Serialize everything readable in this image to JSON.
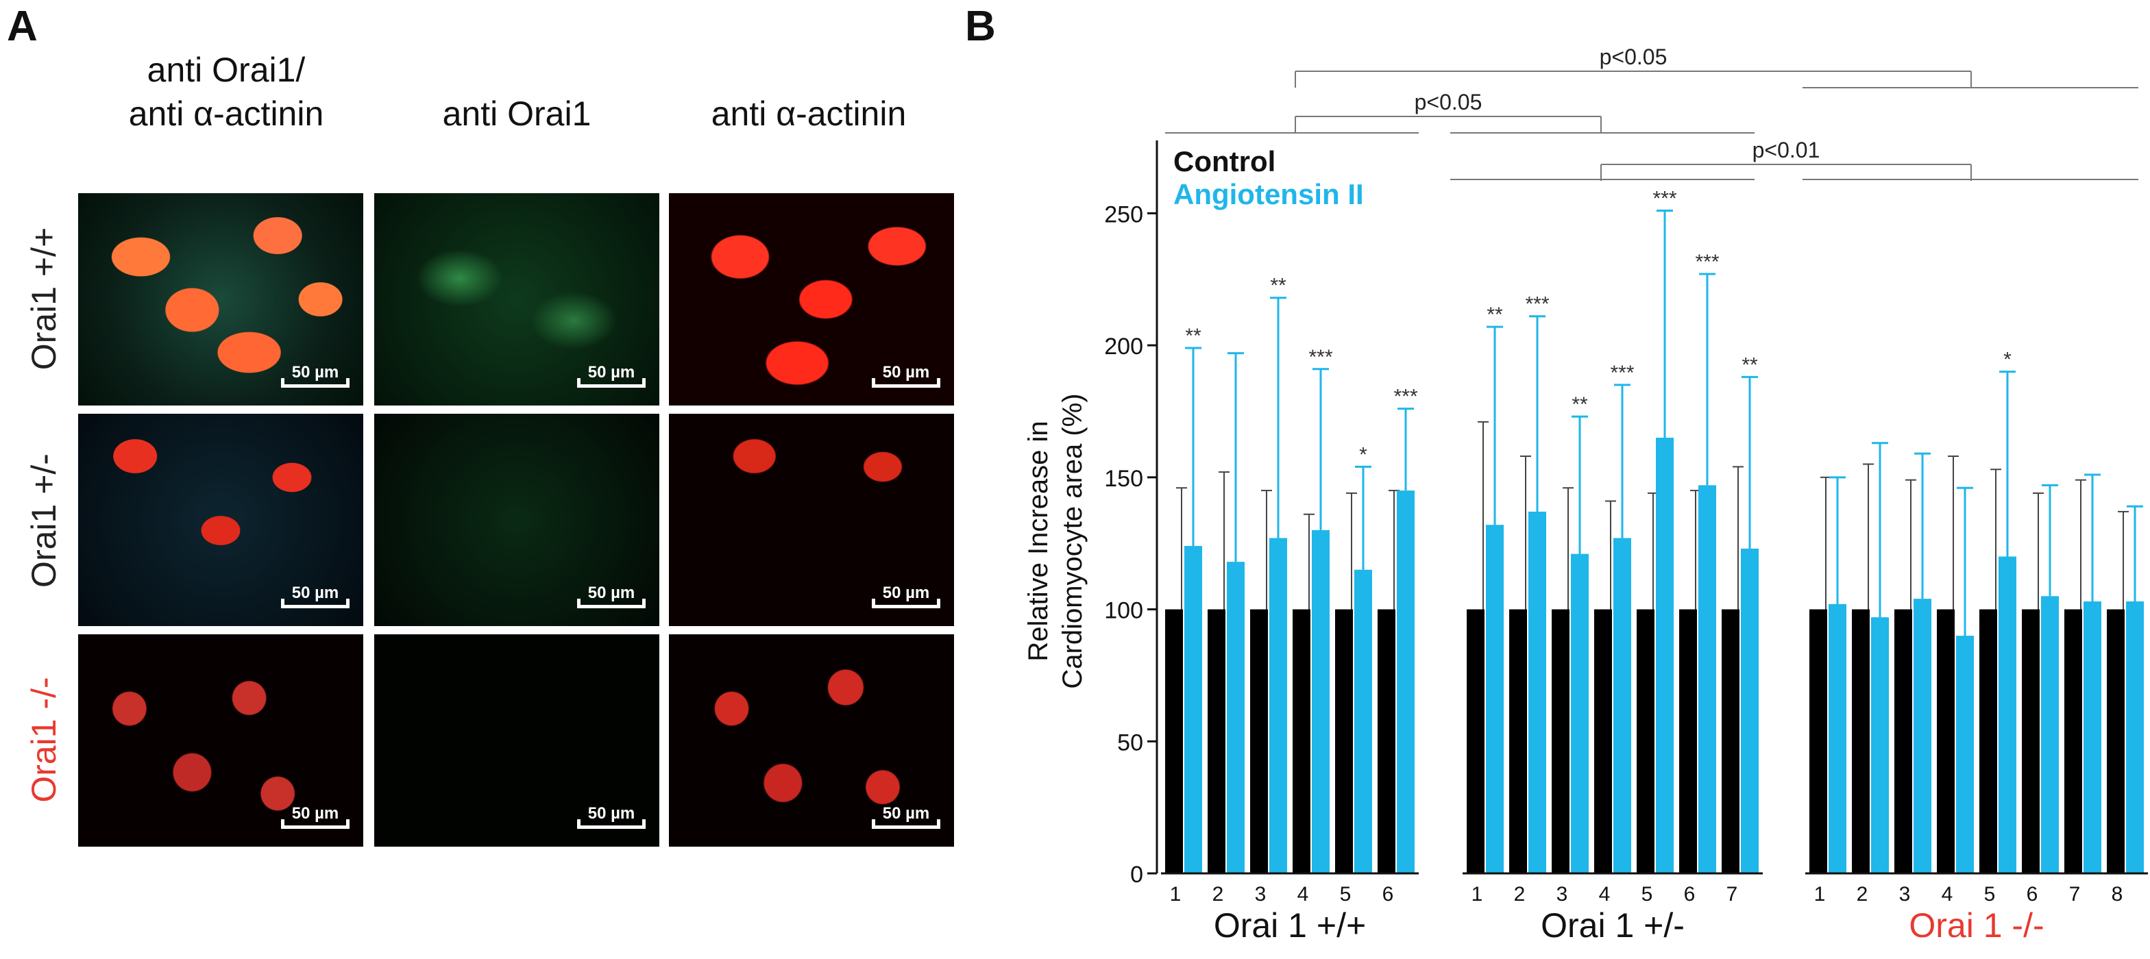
{
  "panel_a": {
    "letter": "A",
    "column_headers": [
      "anti Orai1/\nanti α-actinin",
      "anti Orai1",
      "anti α-actinin"
    ],
    "row_headers": [
      {
        "text": "Orai1 +/+",
        "color": "#222222"
      },
      {
        "text": "Orai1 +/-",
        "color": "#222222"
      },
      {
        "text": "Orai1 -/-",
        "color": "#e8392f"
      }
    ],
    "scale_bar_label": "50 µm"
  },
  "panel_b": {
    "letter": "B",
    "legend": [
      {
        "text": "Control",
        "color": "#111111"
      },
      {
        "text": "Angiotensin II",
        "color": "#1fb6ea"
      }
    ],
    "ylabel_lines": [
      "Relative Increase in",
      "Cardiomyocyte area (%)"
    ],
    "brackets": [
      "p<0.05",
      "p<0.05",
      "p<0.01"
    ]
  },
  "chart_data": {
    "type": "bar",
    "ylim": [
      0,
      275
    ],
    "yticks": [
      0,
      50,
      100,
      150,
      200,
      250
    ],
    "ylabel": "Relative Increase in Cardiomyocyte area (%)",
    "colors": {
      "control": "#000000",
      "angiotensin": "#1fb6ea"
    },
    "groups": [
      {
        "label": "Orai 1 +/+",
        "label_color": "#111111",
        "categories": [
          "1",
          "2",
          "3",
          "4",
          "5",
          "6"
        ],
        "control": [
          100,
          100,
          100,
          100,
          100,
          100
        ],
        "control_err": [
          146,
          152,
          145,
          136,
          144,
          145
        ],
        "angiotensin": [
          124,
          118,
          127,
          130,
          115,
          145
        ],
        "angiotensin_err": [
          199,
          197,
          218,
          191,
          154,
          176
        ],
        "significance": [
          "**",
          "",
          "**",
          "***",
          "*",
          "***"
        ]
      },
      {
        "label": "Orai 1 +/-",
        "label_color": "#111111",
        "categories": [
          "1",
          "2",
          "3",
          "4",
          "5",
          "6",
          "7"
        ],
        "control": [
          100,
          100,
          100,
          100,
          100,
          100,
          100
        ],
        "control_err": [
          171,
          158,
          146,
          141,
          144,
          145,
          154
        ],
        "angiotensin": [
          132,
          137,
          121,
          127,
          165,
          147,
          123
        ],
        "angiotensin_err": [
          207,
          211,
          173,
          185,
          251,
          227,
          188
        ],
        "significance": [
          "**",
          "***",
          "**",
          "***",
          "***",
          "***",
          "**"
        ]
      },
      {
        "label": "Orai 1 -/-",
        "label_color": "#e8392f",
        "categories": [
          "1",
          "2",
          "3",
          "4",
          "5",
          "6",
          "7",
          "8"
        ],
        "control": [
          100,
          100,
          100,
          100,
          100,
          100,
          100,
          100
        ],
        "control_err": [
          150,
          155,
          149,
          158,
          153,
          144,
          149,
          137
        ],
        "angiotensin": [
          102,
          97,
          104,
          90,
          120,
          105,
          103,
          103
        ],
        "angiotensin_err": [
          150,
          163,
          159,
          146,
          190,
          147,
          151,
          139
        ],
        "significance": [
          "",
          "",
          "",
          "",
          "*",
          "",
          "",
          ""
        ]
      }
    ]
  }
}
